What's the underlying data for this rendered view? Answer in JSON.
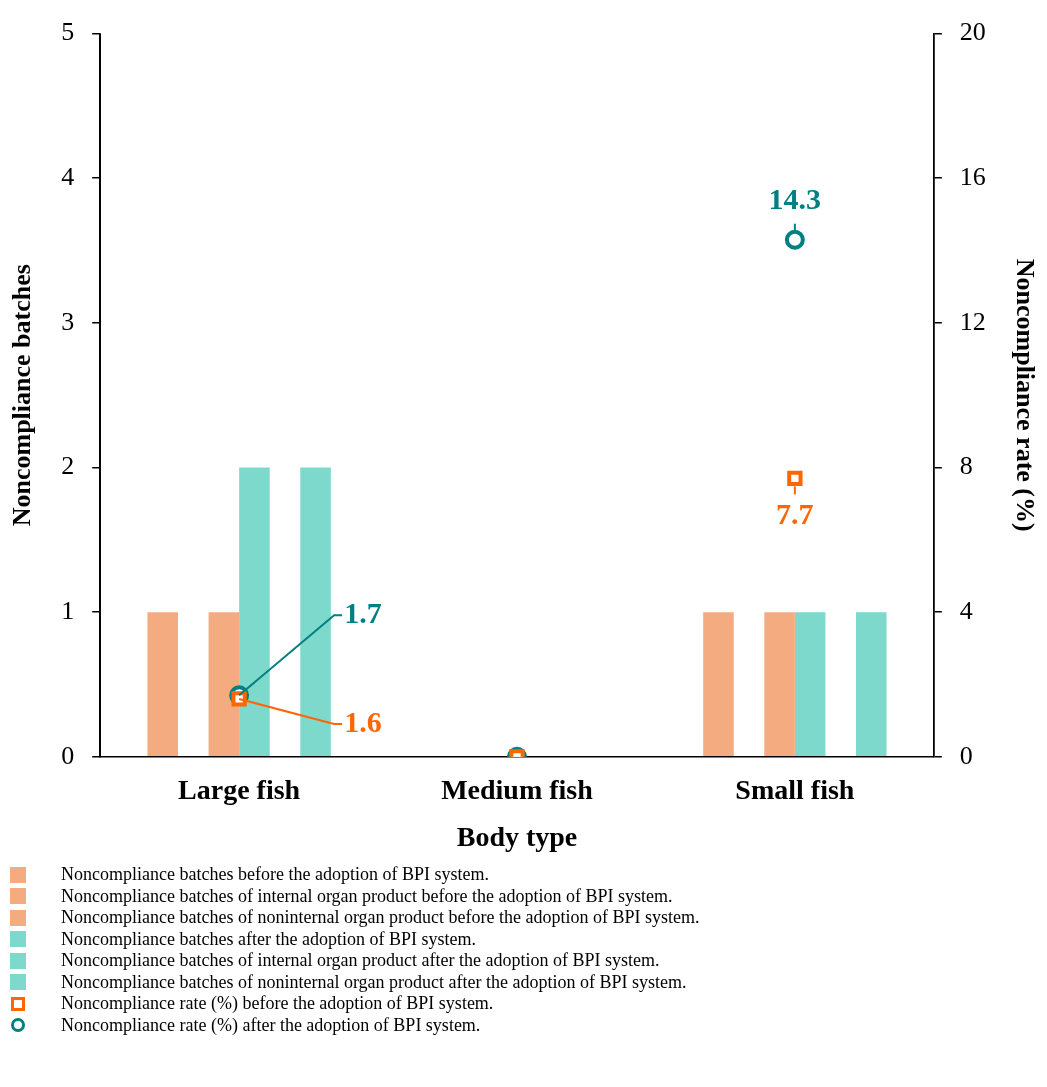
{
  "chart_data": {
    "type": "bar",
    "xlabel": "Body type",
    "ylabel": "Noncompliance batches",
    "y2label": "Noncompliance rate (%)",
    "categories": [
      "Large fish",
      "Medium fish",
      "Small fish"
    ],
    "ylim": [
      0,
      5
    ],
    "yticks": [
      0,
      1,
      2,
      3,
      4,
      5
    ],
    "y2lim": [
      0,
      20
    ],
    "y2ticks": [
      0,
      4,
      8,
      12,
      16,
      20
    ],
    "grid": false,
    "legend": "bottom",
    "series": [
      {
        "name": "Noncompliance batches before the adoption of BPI system.",
        "color": "#f4ab80",
        "values": [
          1,
          0,
          1
        ]
      },
      {
        "name": "Noncompliance batches of internal organ product before the adoption of BPI system.",
        "color": "#f4ab80",
        "values": [
          0,
          0,
          0
        ]
      },
      {
        "name": "Noncompliance batches of noninternal organ product before the adoption of BPI system.",
        "color": "#f4ab80",
        "values": [
          1,
          0,
          1
        ]
      },
      {
        "name": "Noncompliance batches after the adoption of BPI system.",
        "color": "#7dd9cc",
        "values": [
          2,
          0,
          1
        ]
      },
      {
        "name": "Noncompliance batches of internal organ product after the adoption of BPI system.",
        "color": "#7dd9cc",
        "values": [
          0,
          0,
          0
        ]
      },
      {
        "name": "Noncompliance batches of noninternal organ product after the adoption of BPI system.",
        "color": "#7dd9cc",
        "values": [
          2,
          0,
          1
        ]
      },
      {
        "name": "Noncompliance rate (%) before the adoption of BPI system.",
        "type": "scatter",
        "axis": "y2",
        "marker": "square",
        "color": "#ff6600",
        "values": [
          1.6,
          0,
          7.7
        ],
        "value_labels": [
          "1.6",
          null,
          "7.7"
        ]
      },
      {
        "name": "Noncompliance rate (%) after the adoption of BPI system.",
        "type": "scatter",
        "axis": "y2",
        "marker": "circle",
        "color": "#008080",
        "values": [
          1.7,
          0,
          14.3
        ],
        "value_labels": [
          "1.7",
          null,
          "14.3"
        ]
      }
    ]
  }
}
